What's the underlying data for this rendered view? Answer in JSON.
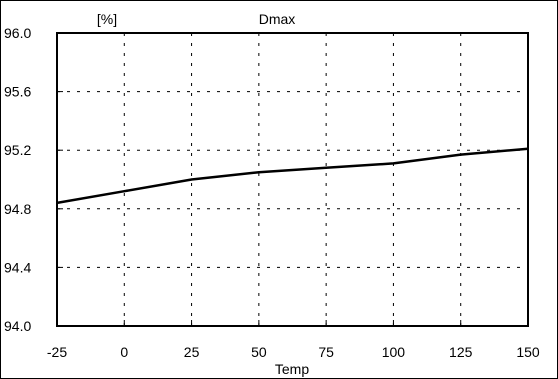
{
  "chart_data": {
    "type": "line",
    "title": "Dmax",
    "xlabel": "Temp",
    "ylabel": "[%]",
    "x_ticks": [
      "-25",
      "0",
      "25",
      "50",
      "75",
      "100",
      "125",
      "150"
    ],
    "y_ticks": [
      "94.0",
      "94.4",
      "94.8",
      "95.2",
      "95.6",
      "96.0"
    ],
    "xlim": [
      -25,
      150
    ],
    "ylim": [
      94.0,
      96.0
    ],
    "grid": true,
    "series": [
      {
        "x": [
          -25,
          0,
          25,
          50,
          75,
          100,
          125,
          150
        ],
        "y": [
          94.84,
          94.92,
          95.0,
          95.05,
          95.08,
          95.11,
          95.17,
          95.21
        ]
      }
    ]
  }
}
